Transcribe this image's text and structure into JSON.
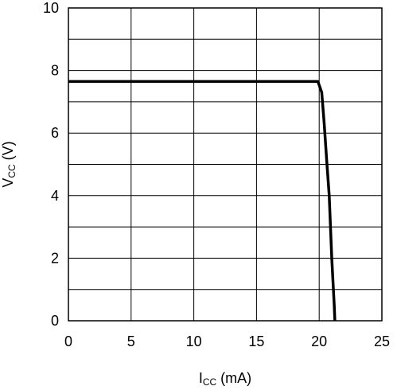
{
  "chart_data": {
    "type": "line",
    "title": "",
    "xlabel": {
      "main": "I",
      "sub": "CC",
      "unit": " (mA)"
    },
    "ylabel": {
      "main": "V",
      "sub": "CC",
      "unit": " (V)"
    },
    "xlim": [
      0,
      25
    ],
    "ylim": [
      0,
      10
    ],
    "x_ticks": [
      "0",
      "5",
      "10",
      "15",
      "20",
      "25"
    ],
    "y_ticks": [
      "0",
      "2",
      "4",
      "6",
      "8",
      "10"
    ],
    "x_tick_values": [
      0,
      5,
      10,
      15,
      20,
      25
    ],
    "y_tick_values": [
      0,
      2,
      4,
      6,
      8,
      10
    ],
    "x_grid_step": 5,
    "y_grid_step": 1,
    "grid": true,
    "legend": "none",
    "series": [
      {
        "color": "#000000",
        "points": [
          [
            0,
            7.65
          ],
          [
            5,
            7.65
          ],
          [
            10,
            7.65
          ],
          [
            15,
            7.65
          ],
          [
            19.9,
            7.65
          ],
          [
            20.2,
            7.3
          ],
          [
            20.4,
            6.3
          ],
          [
            20.6,
            5.1
          ],
          [
            20.8,
            4.0
          ],
          [
            21.0,
            2.0
          ],
          [
            21.2,
            0.5
          ],
          [
            21.25,
            0
          ]
        ]
      }
    ]
  }
}
